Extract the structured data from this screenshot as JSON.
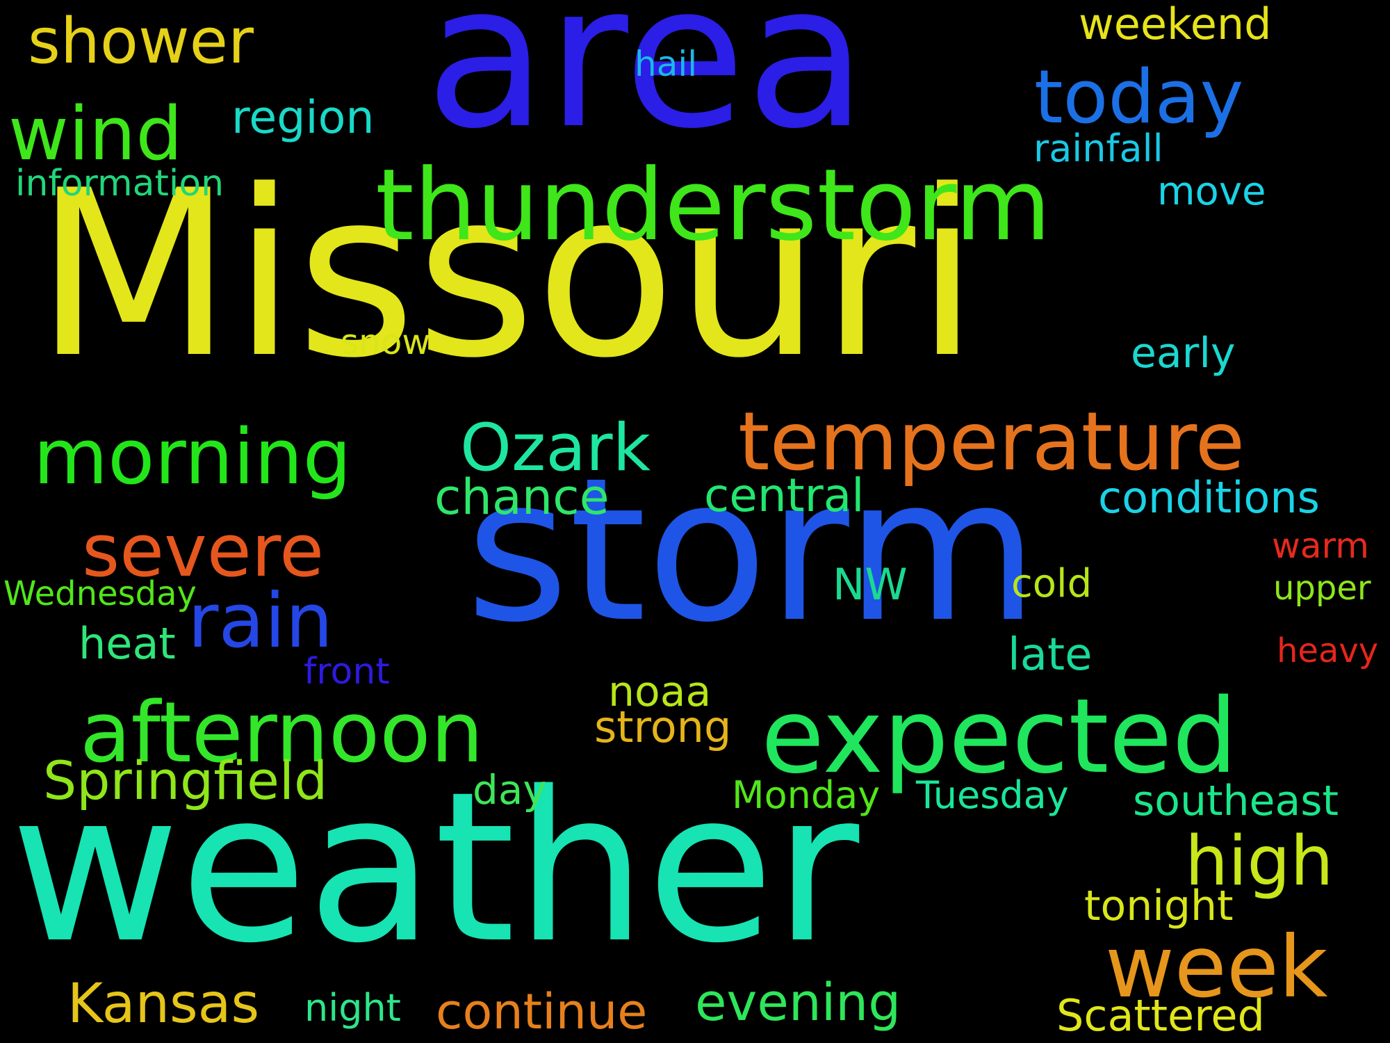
{
  "background_color": "#000000",
  "words": [
    {
      "text": "Missouri",
      "color": "#e3e61a"
    },
    {
      "text": "area",
      "color": "#2b1ee6"
    },
    {
      "text": "storm",
      "color": "#1f55e6"
    },
    {
      "text": "weather",
      "color": "#17e3b3"
    },
    {
      "text": "thunderstorm",
      "color": "#3ee61a"
    },
    {
      "text": "temperature",
      "color": "#e5731d"
    },
    {
      "text": "expected",
      "color": "#1fe65c"
    },
    {
      "text": "afternoon",
      "color": "#33e62a"
    },
    {
      "text": "morning",
      "color": "#23e61a"
    },
    {
      "text": "today",
      "color": "#1c70e6"
    },
    {
      "text": "shower",
      "color": "#e6d119"
    },
    {
      "text": "wind",
      "color": "#3ee61a"
    },
    {
      "text": "severe",
      "color": "#e6571e"
    },
    {
      "text": "rain",
      "color": "#2447e6"
    },
    {
      "text": "week",
      "color": "#e6961c"
    },
    {
      "text": "high",
      "color": "#c8e61a"
    },
    {
      "text": "Ozark",
      "color": "#1ee6a0"
    },
    {
      "text": "Springfield",
      "color": "#8fe61a"
    },
    {
      "text": "Kansas",
      "color": "#e6c51a"
    },
    {
      "text": "continue",
      "color": "#e6801d"
    },
    {
      "text": "evening",
      "color": "#2ee65a"
    },
    {
      "text": "Scattered",
      "color": "#e0e61a"
    },
    {
      "text": "region",
      "color": "#1ad9c8"
    },
    {
      "text": "weekend",
      "color": "#e6e31a"
    },
    {
      "text": "rainfall",
      "color": "#1ac8e6"
    },
    {
      "text": "move",
      "color": "#1ad3e6"
    },
    {
      "text": "information",
      "color": "#22d67a"
    },
    {
      "text": "hail",
      "color": "#1ab8e6"
    },
    {
      "text": "snow",
      "color": "#d8e61a"
    },
    {
      "text": "early",
      "color": "#1ad8d0"
    },
    {
      "text": "chance",
      "color": "#2ee66a"
    },
    {
      "text": "central",
      "color": "#22e670"
    },
    {
      "text": "conditions",
      "color": "#1ad3e6"
    },
    {
      "text": "NW",
      "color": "#1ad990"
    },
    {
      "text": "cold",
      "color": "#b6e61a"
    },
    {
      "text": "warm",
      "color": "#e62a1d"
    },
    {
      "text": "upper",
      "color": "#8ee61a"
    },
    {
      "text": "Wednesday",
      "color": "#52e61a"
    },
    {
      "text": "heat",
      "color": "#2ee67a"
    },
    {
      "text": "front",
      "color": "#2d1ae0"
    },
    {
      "text": "heavy",
      "color": "#e6261a"
    },
    {
      "text": "late",
      "color": "#1ad99a"
    },
    {
      "text": "noaa",
      "color": "#b8e61a"
    },
    {
      "text": "strong",
      "color": "#e6b41a"
    },
    {
      "text": "day",
      "color": "#3ee65a"
    },
    {
      "text": "Monday",
      "color": "#52e61a"
    },
    {
      "text": "Tuesday",
      "color": "#1ae69a"
    },
    {
      "text": "southeast",
      "color": "#1ae68a"
    },
    {
      "text": "tonight",
      "color": "#d8e61a"
    },
    {
      "text": "night",
      "color": "#2ee68a"
    }
  ]
}
